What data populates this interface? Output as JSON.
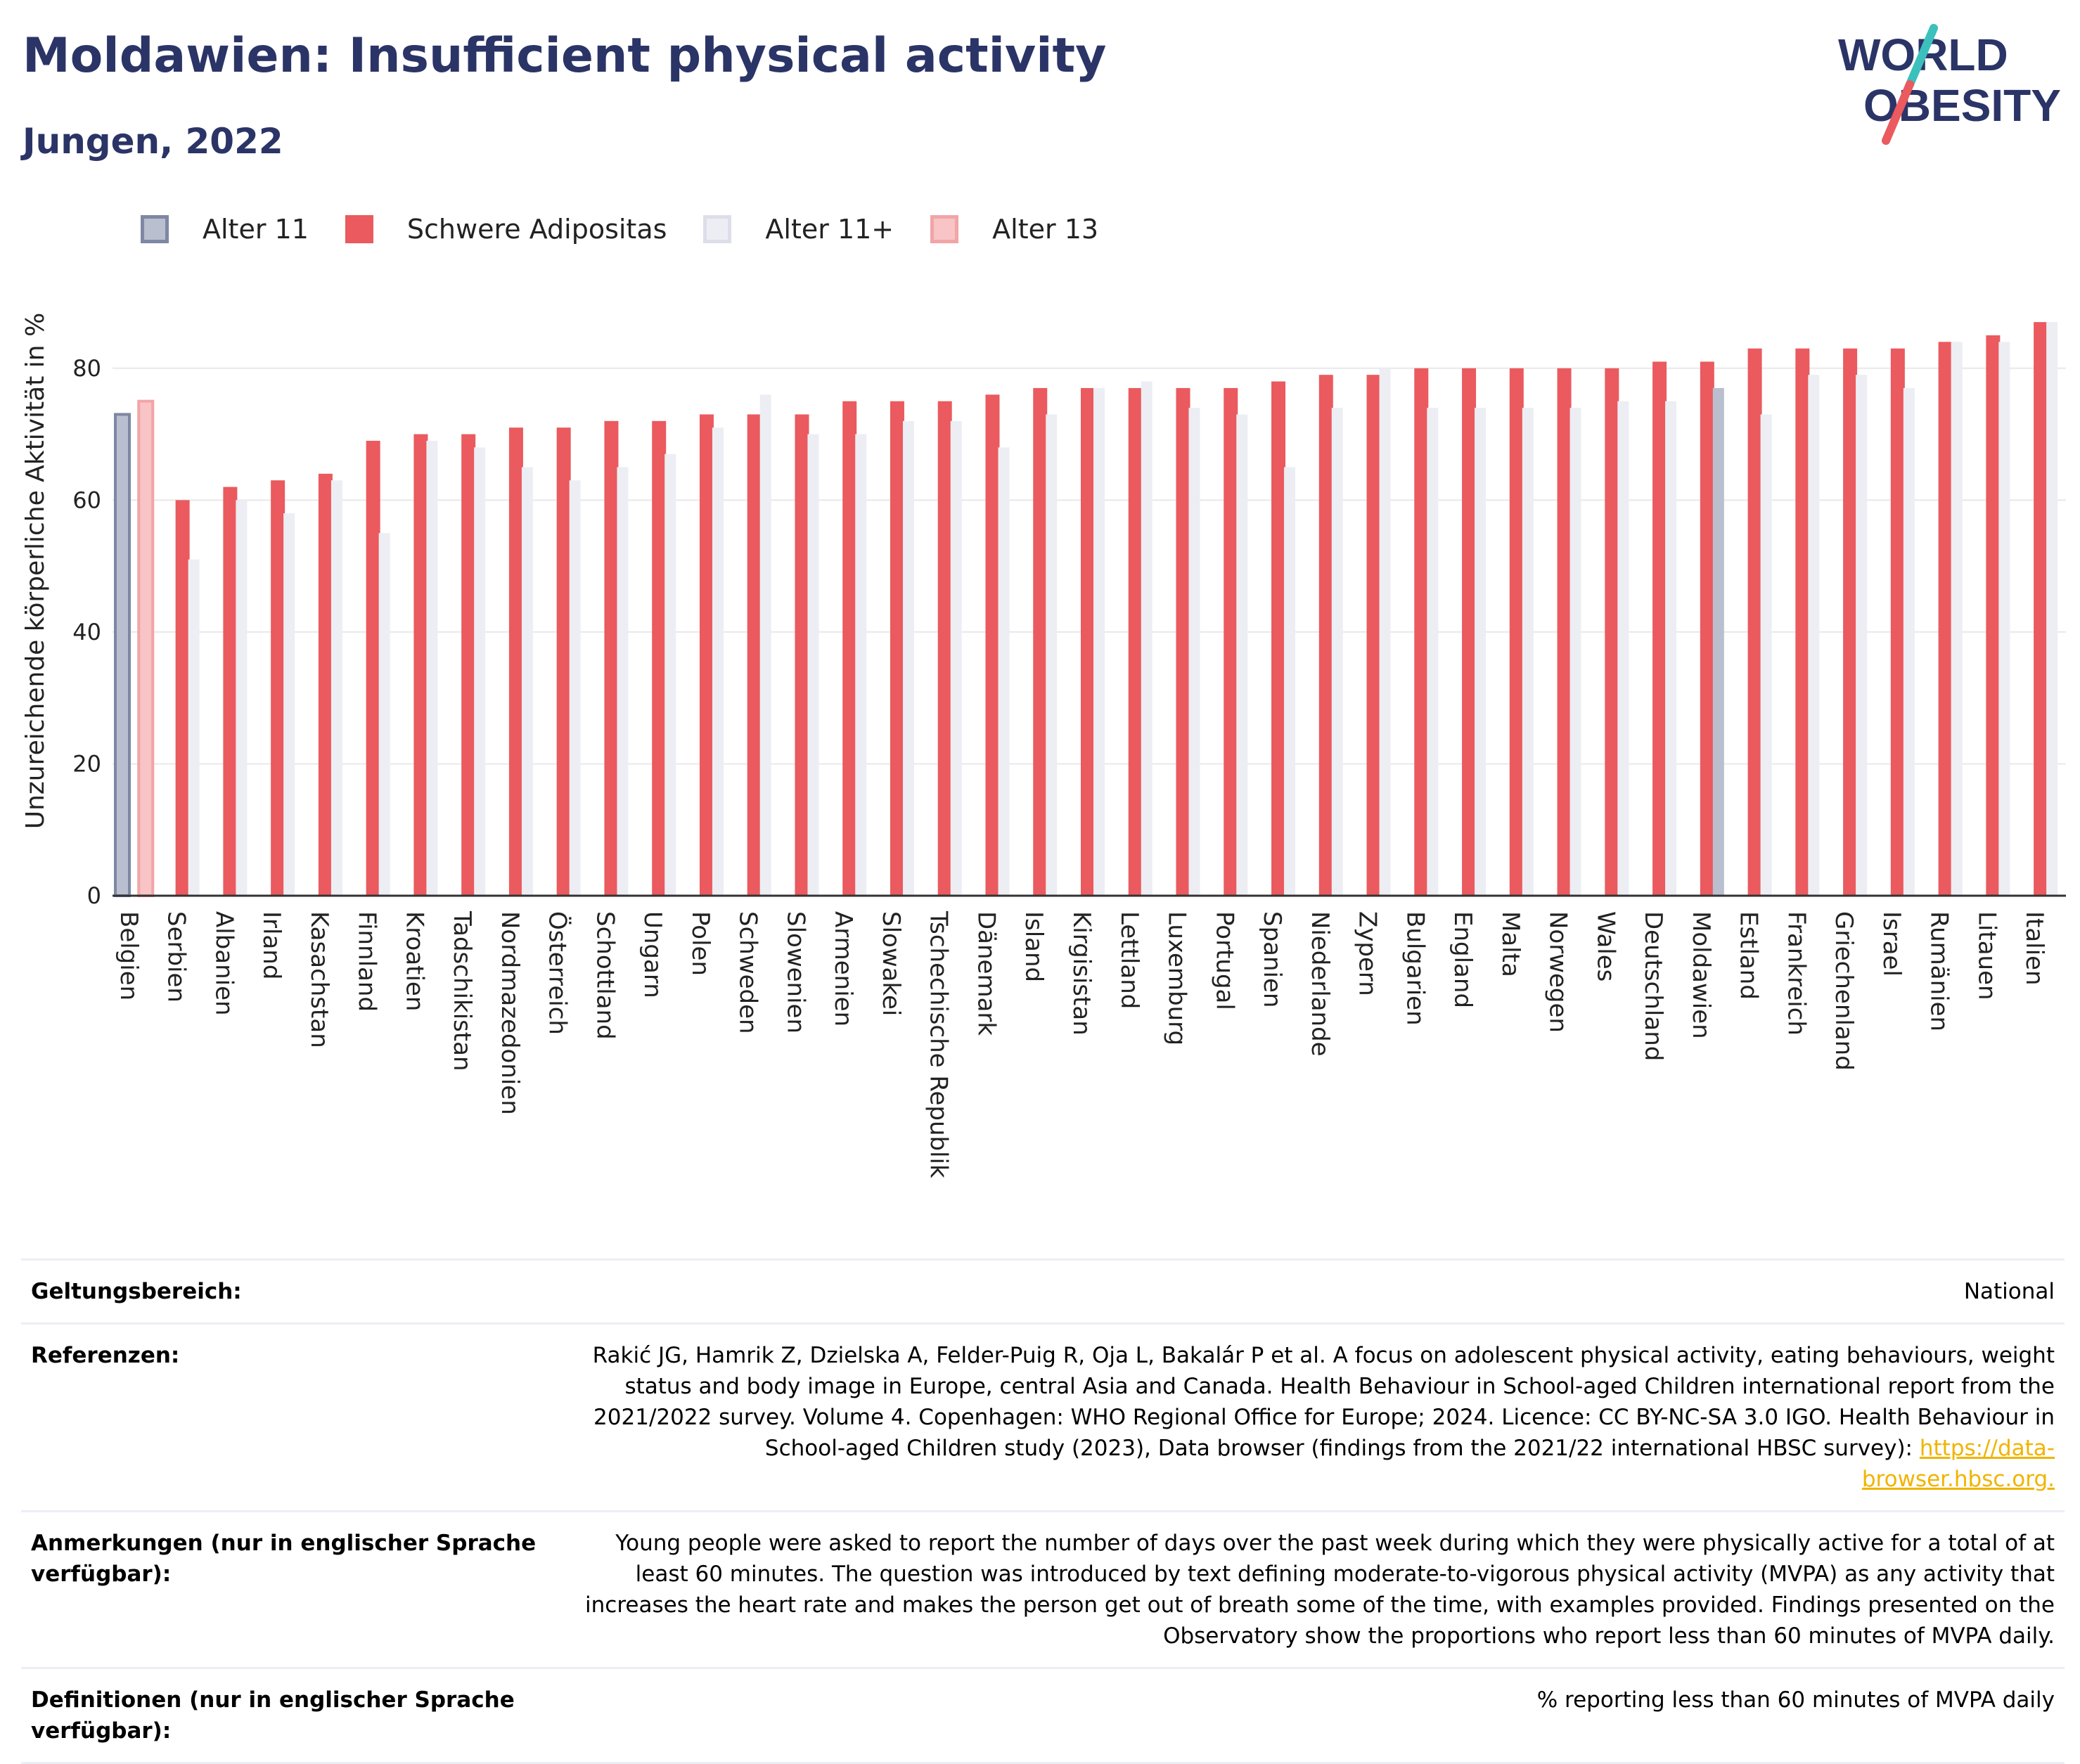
{
  "header": {
    "title": "Moldawien: Insufficient physical activity",
    "subtitle": "Jungen, 2022"
  },
  "logo": {
    "line1": "WORLD",
    "line2": "OBESITY"
  },
  "legend": [
    {
      "label": "Alter 11",
      "color": "#b9bfcf",
      "border": "#7e87a3"
    },
    {
      "label": "Schwere Adipositas",
      "color": "#ea5a5e",
      "border": "#ea5a5e"
    },
    {
      "label": "Alter 11+",
      "color": "#eceef4",
      "border": "#dcdfe9"
    },
    {
      "label": "Alter 13",
      "color": "#f8c4c6",
      "border": "#f2a4a7"
    }
  ],
  "chart_data": {
    "type": "bar",
    "ylabel": "Unzureichende körperliche Aktivität in %",
    "ylim": [
      0,
      90
    ],
    "yticks": [
      0,
      20,
      40,
      60,
      80
    ],
    "grid": true,
    "categories": [
      "Belgien",
      "Serbien",
      "Albanien",
      "Irland",
      "Kasachstan",
      "Finnland",
      "Kroatien",
      "Tadschikistan",
      "Nordmazedonien",
      "Österreich",
      "Schottland",
      "Ungarn",
      "Polen",
      "Schweden",
      "Slowenien",
      "Armenien",
      "Slowakei",
      "Tschechische Republik",
      "Dänemark",
      "Island",
      "Kirgisistan",
      "Lettland",
      "Luxemburg",
      "Portugal",
      "Spanien",
      "Niederlande",
      "Zypern",
      "Bulgarien",
      "England",
      "Malta",
      "Norwegen",
      "Wales",
      "Deutschland",
      "Moldawien",
      "Estland",
      "Frankreich",
      "Griechenland",
      "Israel",
      "Rumänien",
      "Litauen",
      "Italien"
    ],
    "series": [
      {
        "name": "Alter 11",
        "color": "#b9bfcf",
        "values": [
          73,
          null,
          null,
          null,
          null,
          null,
          null,
          null,
          null,
          null,
          null,
          null,
          null,
          null,
          null,
          null,
          null,
          null,
          null,
          null,
          null,
          null,
          null,
          null,
          null,
          null,
          null,
          null,
          null,
          null,
          null,
          null,
          null,
          null,
          null,
          null,
          null,
          null,
          null,
          null,
          null
        ]
      },
      {
        "name": "Alter 13",
        "color": "#f8c4c6",
        "values": [
          75,
          null,
          null,
          null,
          null,
          null,
          null,
          null,
          null,
          null,
          null,
          null,
          null,
          null,
          null,
          null,
          null,
          null,
          null,
          null,
          null,
          null,
          null,
          null,
          null,
          null,
          null,
          null,
          null,
          null,
          null,
          null,
          null,
          null,
          null,
          null,
          null,
          null,
          null,
          null,
          null
        ]
      },
      {
        "name": "Schwere Adipositas",
        "color": "#ea5a5e",
        "values": [
          null,
          60,
          62,
          63,
          64,
          69,
          70,
          70,
          71,
          71,
          72,
          72,
          73,
          73,
          73,
          75,
          75,
          75,
          76,
          77,
          77,
          77,
          77,
          77,
          78,
          79,
          79,
          80,
          80,
          80,
          80,
          80,
          81,
          81,
          83,
          83,
          83,
          83,
          84,
          85,
          87
        ]
      },
      {
        "name": "Alter 11+",
        "color": "#eceef4",
        "values": [
          null,
          51,
          60,
          58,
          63,
          55,
          69,
          68,
          65,
          63,
          65,
          67,
          71,
          76,
          70,
          70,
          72,
          72,
          68,
          73,
          77,
          78,
          74,
          73,
          65,
          74,
          80,
          74,
          74,
          74,
          74,
          75,
          75,
          null,
          73,
          79,
          79,
          77,
          84,
          84,
          87
        ]
      },
      {
        "name": "Moldawien",
        "color": "#b9bfcf",
        "values": [
          null,
          null,
          null,
          null,
          null,
          null,
          null,
          null,
          null,
          null,
          null,
          null,
          null,
          null,
          null,
          null,
          null,
          null,
          null,
          null,
          null,
          null,
          null,
          null,
          null,
          null,
          null,
          null,
          null,
          null,
          null,
          null,
          null,
          77,
          null,
          null,
          null,
          null,
          null,
          null,
          null
        ]
      }
    ]
  },
  "info": {
    "scope_label": "Geltungsbereich:",
    "scope_value": "National",
    "references_label": "Referenzen:",
    "references_value": "Rakić JG, Hamrik Z, Dzielska A, Felder-Puig R, Oja L, Bakalár P et al. A focus on adolescent physical activity, eating behaviours, weight status and body image in Europe, central Asia and Canada. Health Behaviour in School-aged Children international report from the 2021/2022 survey. Volume 4. Copenhagen: WHO Regional Office for Europe; 2024. Licence: CC BY-NC-SA 3.0 IGO. Health Behaviour in School-aged Children study (2023), Data browser (findings from the 2021/22 international HBSC survey): ",
    "references_link": "https://data-browser.hbsc.org.",
    "notes_label": "Anmerkungen (nur in englischer Sprache verfügbar):",
    "notes_value": "Young people were asked to report the number of days over the past week during which they were physically active for a total of at least 60 minutes. The question was introduced by text defining moderate-to-vigorous physical activity (MVPA) as any activity that increases the heart rate and makes the person get out of breath some of the time, with examples provided. Findings presented on the Observatory show the proportions who report less than 60 minutes of MVPA daily.",
    "definitions_label": "Definitionen (nur in englischer Sprache verfügbar):",
    "definitions_value": "% reporting less than 60 minutes of MVPA daily"
  }
}
